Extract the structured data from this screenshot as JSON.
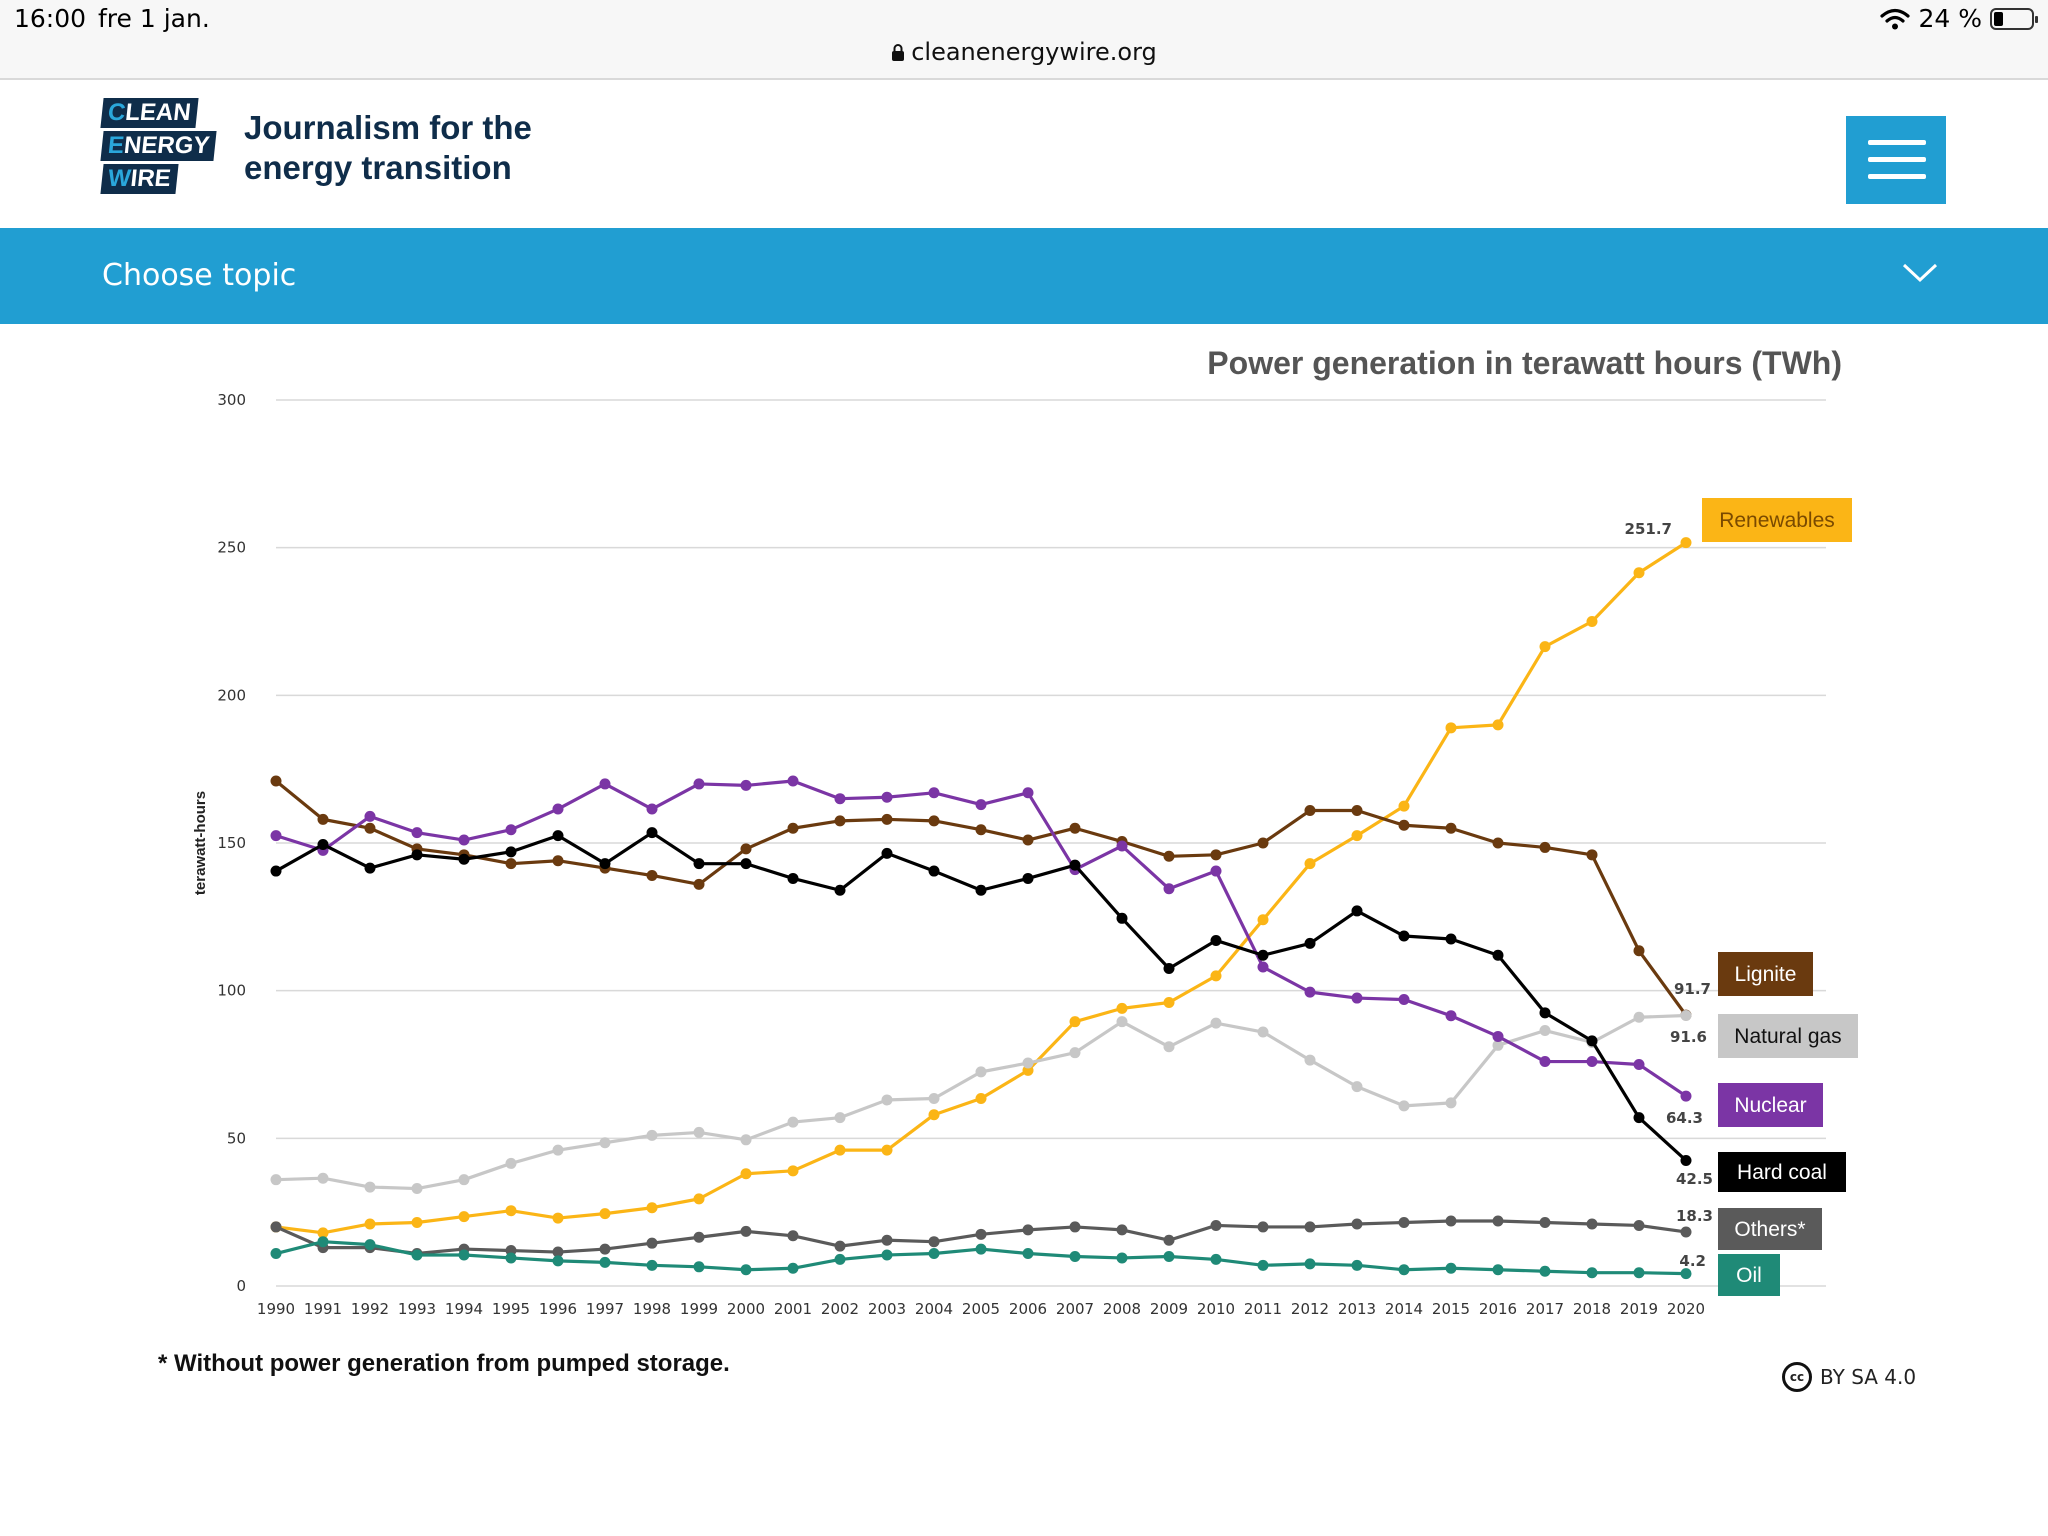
{
  "status_bar": {
    "time": "16:00",
    "date": "fre 1 jan.",
    "battery": "24 %",
    "battery_level": 0.24
  },
  "browser": {
    "url": "cleanenergywire.org"
  },
  "header": {
    "logo_lines": [
      {
        "first": "C",
        "rest": "LEAN"
      },
      {
        "first": "E",
        "rest": "NERGY"
      },
      {
        "first": "W",
        "rest": "IRE"
      }
    ],
    "tagline_line1": "Journalism for the",
    "tagline_line2": "energy transition"
  },
  "topic_bar": {
    "label": "Choose topic"
  },
  "chart_data": {
    "type": "line",
    "title": "Power generation in terawatt hours (TWh)",
    "ylabel": "terawatt-hours",
    "xlabel": "",
    "ylim": [
      0,
      300
    ],
    "yticks": [
      0,
      50,
      100,
      150,
      200,
      250,
      300
    ],
    "x": [
      1990,
      1991,
      1992,
      1993,
      1994,
      1995,
      1996,
      1997,
      1998,
      1999,
      2000,
      2001,
      2002,
      2003,
      2004,
      2005,
      2006,
      2007,
      2008,
      2009,
      2010,
      2011,
      2012,
      2013,
      2014,
      2015,
      2016,
      2017,
      2018,
      2019,
      2020
    ],
    "series": [
      {
        "name": "Renewables",
        "color": "#fbb516",
        "label_text": "#7a4a00",
        "end_value": "251.7",
        "values": [
          20,
          18,
          21,
          21.5,
          23.5,
          25.5,
          23,
          24.5,
          26.5,
          29.5,
          38,
          39,
          46,
          46,
          58,
          63.5,
          73,
          89.5,
          94,
          96,
          105,
          124,
          143,
          152.5,
          162.5,
          189,
          190,
          216.5,
          225,
          241.5,
          251.7
        ]
      },
      {
        "name": "Lignite",
        "color": "#6a3a0f",
        "label_text": "#ffffff",
        "end_value": "91.7",
        "values": [
          171,
          158,
          155,
          148,
          146,
          143,
          144,
          141.5,
          139,
          136,
          148,
          155,
          157.5,
          158,
          157.5,
          154.5,
          151,
          155,
          150.5,
          145.5,
          146,
          150,
          161,
          161,
          156,
          155,
          150,
          148.5,
          146,
          113.5,
          91.7
        ]
      },
      {
        "name": "Natural gas",
        "color": "#c7c7c7",
        "label_text": "#111111",
        "end_value": "91.6",
        "values": [
          36,
          36.5,
          33.5,
          33,
          36,
          41.5,
          46,
          48.5,
          51,
          52,
          49.5,
          55.5,
          57,
          63,
          63.5,
          72.5,
          75.5,
          79,
          89.5,
          81,
          89,
          86,
          76.5,
          67.5,
          61,
          62,
          81.5,
          86.5,
          82.5,
          91,
          91.6
        ]
      },
      {
        "name": "Nuclear",
        "color": "#7b35a5",
        "label_text": "#ffffff",
        "end_value": "64.3",
        "values": [
          152.5,
          147.5,
          159,
          153.5,
          151,
          154.5,
          161.5,
          170,
          161.5,
          170,
          169.5,
          171,
          165,
          165.5,
          167,
          163,
          167,
          141,
          149,
          134.5,
          140.5,
          108,
          99.5,
          97.5,
          97,
          91.5,
          84.5,
          76,
          76,
          75,
          64.3
        ]
      },
      {
        "name": "Hard coal",
        "color": "#000000",
        "label_text": "#ffffff",
        "end_value": "42.5",
        "values": [
          140.5,
          149.5,
          141.5,
          146,
          144.5,
          147,
          152.5,
          143,
          153.5,
          143,
          143,
          138,
          134,
          146.5,
          140.5,
          134,
          138,
          142.5,
          124.5,
          107.5,
          117,
          112,
          116,
          127,
          118.5,
          117.5,
          112,
          92.5,
          83,
          57,
          42.5
        ]
      },
      {
        "name": "Others*",
        "color": "#5a5a5a",
        "label_text": "#ffffff",
        "end_value": "18.3",
        "values": [
          20,
          13,
          13,
          11,
          12.5,
          12,
          11.5,
          12.5,
          14.5,
          16.5,
          18.5,
          17,
          13.5,
          15.5,
          15,
          17.5,
          19,
          20,
          19,
          15.5,
          20.5,
          20,
          20,
          21,
          21.5,
          22,
          22,
          21.5,
          21,
          20.5,
          18.3
        ]
      },
      {
        "name": "Oil",
        "color": "#1f8a77",
        "label_text": "#ffffff",
        "end_value": "4.2",
        "values": [
          11,
          15,
          14,
          10.5,
          10.5,
          9.5,
          8.5,
          8,
          7,
          6.5,
          5.5,
          6,
          9,
          10.5,
          11,
          12.5,
          11,
          10,
          9.5,
          10,
          9,
          7,
          7.5,
          7,
          5.5,
          6,
          5.5,
          5,
          4.5,
          4.5,
          4.2
        ]
      }
    ]
  },
  "footnote": "* Without power generation from pumped storage.",
  "license": {
    "icon": "cc",
    "text": "BY SA 4.0"
  }
}
